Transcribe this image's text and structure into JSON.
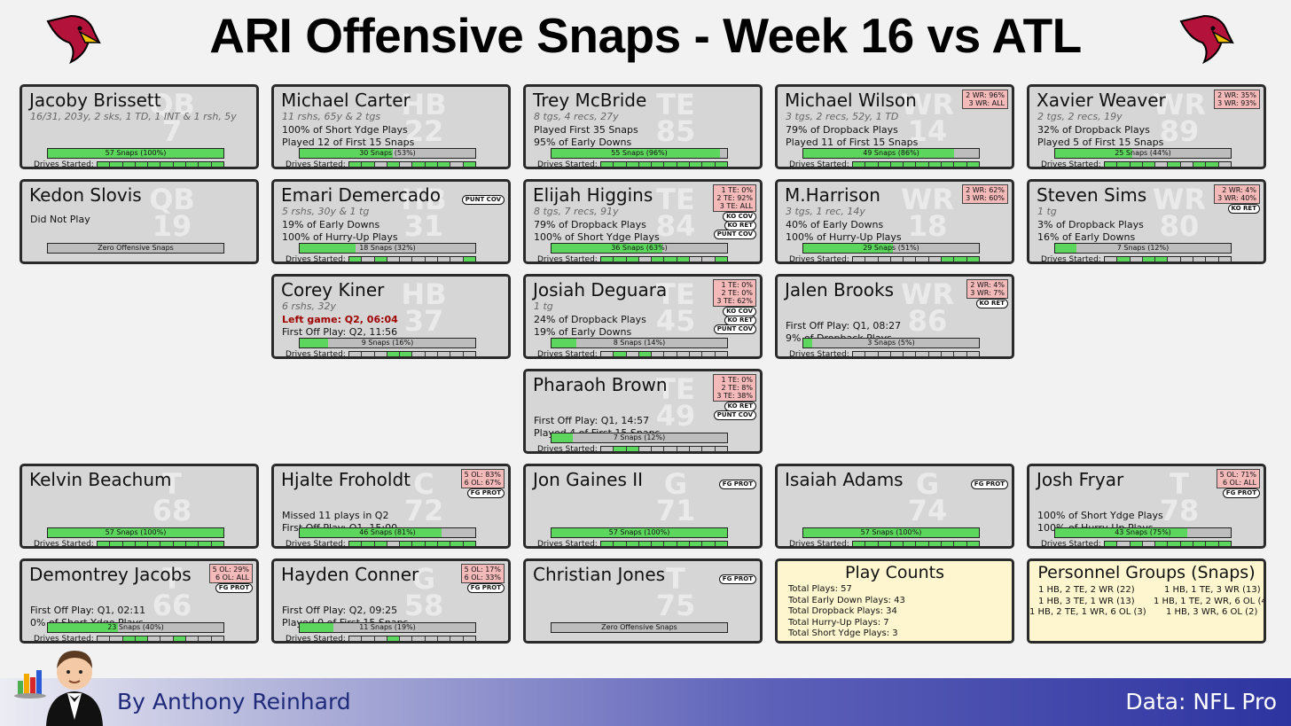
{
  "title": "ARI Offensive Snaps - Week 16 vs ATL",
  "byline": "By Anthony Reinhard",
  "source": "Data: NFL Pro",
  "labels": {
    "drives_started": "Drives Started:"
  },
  "players": [
    {
      "name": "Jacoby Brissett",
      "pos": "QB",
      "num": "7",
      "stat": "16/31, 203y, 2 sks, 1 TD, 1 INT & 1 rsh, 5y",
      "info": [],
      "snaps": "57 Snaps (100%)",
      "snap_pct": 100,
      "drives": [
        1,
        1,
        1,
        1,
        1,
        1,
        1,
        1,
        1,
        1
      ]
    },
    {
      "name": "Michael Carter",
      "pos": "HB",
      "num": "22",
      "stat": "11 rshs, 65y & 2 tgs",
      "info": [
        "100% of Short Ydge Plays",
        "Played 12 of First 15 Snaps"
      ],
      "snaps": "30 Snaps (53%)",
      "snap_pct": 53,
      "drives": [
        1,
        1,
        0,
        1,
        0,
        1,
        1,
        1,
        0,
        1
      ]
    },
    {
      "name": "Trey McBride",
      "pos": "TE",
      "num": "85",
      "stat": "8 tgs, 4 recs, 27y",
      "info": [
        "Played First 35 Snaps",
        "95% of Early Downs"
      ],
      "snaps": "55 Snaps (96%)",
      "snap_pct": 96,
      "drives": [
        1,
        1,
        1,
        1,
        1,
        1,
        1,
        1,
        1,
        1
      ]
    },
    {
      "name": "Michael Wilson",
      "pos": "WR",
      "num": "14",
      "stat": "3 tgs, 2 recs, 52y, 1 TD",
      "info": [
        "79% of Dropback Plays",
        "Played 11 of First 15 Snaps"
      ],
      "snaps": "49 Snaps (86%)",
      "snap_pct": 86,
      "drives": [
        1,
        1,
        1,
        1,
        1,
        1,
        1,
        1,
        1,
        1
      ],
      "share": [
        "2 WR: 96%",
        "3 WR: ALL"
      ]
    },
    {
      "name": "Xavier Weaver",
      "pos": "WR",
      "num": "89",
      "stat": "2 tgs, 2 recs, 19y",
      "info": [
        "32% of Dropback Plays",
        "Played 5 of First 15 Snaps"
      ],
      "snaps": "25 Snaps (44%)",
      "snap_pct": 44,
      "drives": [
        1,
        1,
        1,
        1,
        0,
        1,
        0,
        1,
        1,
        0
      ],
      "share": [
        "2 WR: 35%",
        "3 WR: 93%"
      ]
    },
    {
      "name": "Kedon Slovis",
      "pos": "QB",
      "num": "19",
      "stat": "",
      "info": [
        "Did Not Play"
      ],
      "snaps": "Zero Offensive Snaps",
      "snap_pct": 0,
      "drives": null
    },
    {
      "name": "Emari Demercado",
      "pos": "HB",
      "num": "31",
      "stat": "5 rshs, 30y & 1 tg",
      "info": [
        "19% of Early Downs",
        "100% of Hurry-Up Plays"
      ],
      "snaps": "18 Snaps (32%)",
      "snap_pct": 32,
      "drives": [
        1,
        0,
        1,
        0,
        0,
        0,
        0,
        0,
        0,
        1
      ],
      "tags": [
        "PUNT COV"
      ]
    },
    {
      "name": "Elijah Higgins",
      "pos": "TE",
      "num": "84",
      "stat": "8 tgs, 7 recs, 91y",
      "info": [
        "79% of Dropback Plays",
        "100% of Short Ydge Plays"
      ],
      "snaps": "36 Snaps (63%)",
      "snap_pct": 63,
      "drives": [
        1,
        1,
        1,
        0,
        1,
        1,
        1,
        0,
        0,
        1
      ],
      "share": [
        "1 TE:  0%",
        "2 TE: 92%",
        "3 TE: ALL"
      ],
      "tags": [
        "KO COV",
        "KO RET",
        "PUNT COV"
      ]
    },
    {
      "name": "M.Harrison",
      "pos": "WR",
      "num": "18",
      "stat": "3 tgs, 1 rec, 14y",
      "info": [
        "40% of Early Downs",
        "100% of Hurry-Up Plays"
      ],
      "snaps": "29 Snaps (51%)",
      "snap_pct": 51,
      "drives": [
        0,
        0,
        0,
        0,
        0,
        0,
        0,
        1,
        1,
        1
      ],
      "share": [
        "2 WR: 62%",
        "3 WR: 60%"
      ]
    },
    {
      "name": "Steven Sims",
      "pos": "WR",
      "num": "80",
      "stat": "1 tg",
      "info": [
        "3% of Dropback Plays",
        "16% of Early Downs"
      ],
      "snaps": "7 Snaps (12%)",
      "snap_pct": 12,
      "drives": [
        0,
        1,
        0,
        1,
        1,
        0,
        0,
        0,
        0,
        0
      ],
      "share": [
        "2 WR:  4%",
        "3 WR: 40%"
      ],
      "tags": [
        "KO RET"
      ]
    },
    {
      "name": "Corey Kiner",
      "pos": "HB",
      "num": "37",
      "stat": "6 rshs, 32y",
      "red": "Left game: Q2, 06:04",
      "info": [
        "First Off Play: Q2, 11:56"
      ],
      "snaps": "9 Snaps (16%)",
      "snap_pct": 16,
      "drives": [
        0,
        0,
        0,
        1,
        1,
        0,
        0,
        0,
        0,
        0
      ]
    },
    {
      "name": "Josiah Deguara",
      "pos": "TE",
      "num": "45",
      "stat": "1 tg",
      "info": [
        "24% of Dropback Plays",
        "19% of Early Downs"
      ],
      "snaps": "8 Snaps (14%)",
      "snap_pct": 14,
      "drives": [
        0,
        1,
        0,
        1,
        0,
        0,
        0,
        0,
        0,
        0
      ],
      "share": [
        "1 TE:  0%",
        "2 TE:  0%",
        "3 TE: 62%"
      ],
      "tags": [
        "KO COV",
        "KO RET",
        "PUNT COV"
      ]
    },
    {
      "name": "Jalen Brooks",
      "pos": "WR",
      "num": "86",
      "stat": "",
      "info": [
        "First Off Play: Q1, 08:27",
        "9% of Dropback Plays"
      ],
      "snaps": "3 Snaps (5%)",
      "snap_pct": 5,
      "drives": [
        0,
        0,
        0,
        0,
        0,
        0,
        0,
        0,
        0,
        0
      ],
      "share": [
        "2 WR:  4%",
        "3 WR:  7%"
      ],
      "tags": [
        "KO RET"
      ]
    },
    {
      "name": "Pharaoh Brown",
      "pos": "TE",
      "num": "49",
      "stat": "",
      "info": [
        "First Off Play: Q1, 14:57",
        "Played 4 of First 15 Snaps"
      ],
      "snaps": "7 Snaps (12%)",
      "snap_pct": 12,
      "drives": [
        0,
        1,
        1,
        0,
        0,
        0,
        0,
        0,
        0,
        0
      ],
      "share": [
        "1 TE:  0%",
        "2 TE:  8%",
        "3 TE: 38%"
      ],
      "tags": [
        "KO RET",
        "PUNT COV"
      ]
    },
    {
      "name": "Kelvin Beachum",
      "pos": "T",
      "num": "68",
      "stat": "",
      "info": [],
      "snaps": "57 Snaps (100%)",
      "snap_pct": 100,
      "drives": [
        1,
        1,
        1,
        1,
        1,
        1,
        1,
        1,
        1,
        1
      ]
    },
    {
      "name": "Hjalte Froholdt",
      "pos": "C",
      "num": "72",
      "stat": "",
      "info": [
        "Missed 11 plays in Q2",
        "First Off Play: Q1, 15:00"
      ],
      "snaps": "46 Snaps (81%)",
      "snap_pct": 81,
      "drives": [
        1,
        1,
        1,
        0,
        1,
        1,
        1,
        1,
        1,
        1
      ],
      "share": [
        "5 OL: 83%",
        "6 OL: 67%"
      ],
      "tags": [
        "FG PROT"
      ]
    },
    {
      "name": "Jon Gaines II",
      "pos": "G",
      "num": "71",
      "stat": "",
      "info": [],
      "snaps": "57 Snaps (100%)",
      "snap_pct": 100,
      "drives": [
        1,
        1,
        1,
        1,
        1,
        1,
        1,
        1,
        1,
        1
      ],
      "tags": [
        "FG PROT"
      ]
    },
    {
      "name": "Isaiah Adams",
      "pos": "G",
      "num": "74",
      "stat": "",
      "info": [],
      "snaps": "57 Snaps (100%)",
      "snap_pct": 100,
      "drives": [
        1,
        1,
        1,
        1,
        1,
        1,
        1,
        1,
        1,
        1
      ],
      "tags": [
        "FG PROT"
      ]
    },
    {
      "name": "Josh Fryar",
      "pos": "T",
      "num": "78",
      "stat": "",
      "info": [
        "100% of Short Ydge Plays",
        "100% of Hurry-Up Plays"
      ],
      "snaps": "43 Snaps (75%)",
      "snap_pct": 75,
      "drives": [
        1,
        0,
        1,
        0,
        1,
        1,
        1,
        1,
        1,
        1
      ],
      "share": [
        "5 OL: 71%",
        "6 OL: ALL"
      ],
      "tags": [
        "FG PROT"
      ]
    },
    {
      "name": "Demontrey Jacobs",
      "pos": "T",
      "num": "66",
      "stat": "",
      "info": [
        "First Off Play: Q1, 02:11",
        "0% of Short Ydge Plays"
      ],
      "snaps": "23 Snaps (40%)",
      "snap_pct": 40,
      "drives": [
        0,
        0,
        1,
        1,
        0,
        0,
        1,
        0,
        0,
        0
      ],
      "share": [
        "5 OL: 29%",
        "6 OL: ALL"
      ],
      "tags": [
        "FG PROT"
      ]
    },
    {
      "name": "Hayden Conner",
      "pos": "G",
      "num": "58",
      "stat": "",
      "info": [
        "First Off Play: Q2, 09:25",
        "Played 0 of First 15 Snaps"
      ],
      "snaps": "11 Snaps (19%)",
      "snap_pct": 19,
      "drives": [
        0,
        0,
        0,
        1,
        0,
        0,
        0,
        0,
        0,
        0
      ],
      "share": [
        "5 OL: 17%",
        "6 OL: 33%"
      ],
      "tags": [
        "FG PROT"
      ]
    },
    {
      "name": "Christian Jones",
      "pos": "T",
      "num": "75",
      "stat": "",
      "info": [],
      "snaps": "Zero Offensive Snaps",
      "snap_pct": 0,
      "drives": null,
      "tags": [
        "FG PROT"
      ]
    }
  ],
  "play_counts": {
    "title": "Play Counts",
    "lines": [
      "Total Plays: 57",
      "Total Early Down Plays: 43",
      "Total Dropback Plays: 34",
      "Total Hurry-Up Plays: 7",
      "Total Short Ydge Plays: 3"
    ]
  },
  "personnel": {
    "title": "Personnel Groups (Snaps)",
    "left": [
      "1 HB, 2 TE, 2 WR (22)",
      "1 HB, 3 TE, 1 WR (13)",
      "1 HB, 2 TE, 1 WR, 6 OL (3)"
    ],
    "right": [
      "1 HB, 1 TE, 3 WR (13)",
      "1 HB, 1 TE, 2 WR, 6 OL (4)",
      "1 HB, 3 WR, 6 OL (2)"
    ]
  }
}
